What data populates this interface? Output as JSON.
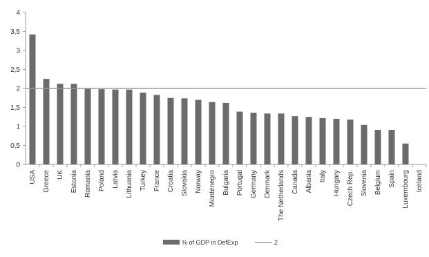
{
  "chart_data": {
    "type": "bar",
    "categories": [
      "USA",
      "Greece",
      "UK",
      "Estonia",
      "Romania",
      "Poland",
      "Latvia",
      "Lithuania",
      "Turkey",
      "France",
      "Croatia",
      "Slovakia",
      "Norway",
      "Montenegro",
      "Bulgaria",
      "Portugal",
      "Germany",
      "Denmark",
      "The Netherlands",
      "Canada",
      "Albania",
      "Italy",
      "Hungary",
      "Czech Rep.",
      "Slovenia",
      "Belgium",
      "Spain",
      "Luxembourg",
      "Iceland"
    ],
    "series": [
      {
        "name": "% of GDP in DefExp",
        "type": "bar",
        "color": "#6b6b6b",
        "values": [
          3.42,
          2.25,
          2.12,
          2.12,
          2.0,
          1.98,
          1.97,
          1.97,
          1.89,
          1.83,
          1.75,
          1.74,
          1.7,
          1.64,
          1.62,
          1.39,
          1.36,
          1.34,
          1.34,
          1.27,
          1.25,
          1.22,
          1.2,
          1.18,
          1.04,
          0.91,
          0.91,
          0.55,
          0
        ]
      },
      {
        "name": "2",
        "type": "line",
        "color": "#9a9a9a",
        "value": 2
      }
    ],
    "yticks": [
      "0",
      "0,5",
      "1",
      "1,5",
      "2",
      "2,5",
      "3",
      "3,5",
      "4"
    ],
    "ylim": [
      0,
      4
    ],
    "grid": false,
    "legend": "bottom-center"
  }
}
